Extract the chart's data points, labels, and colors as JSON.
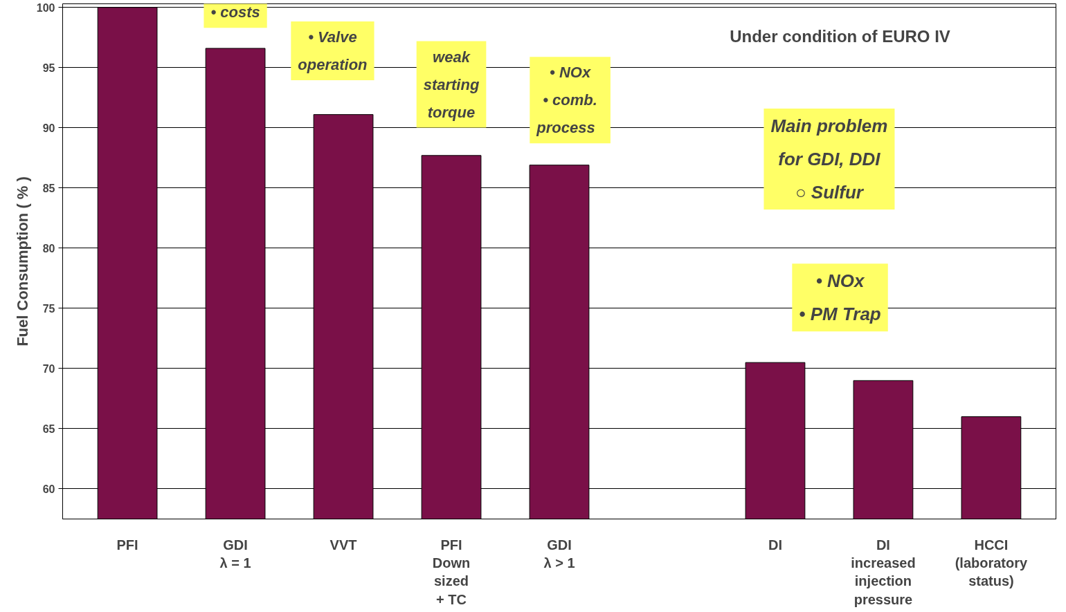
{
  "chart_data": {
    "type": "bar",
    "ylabel": "Fuel Consumption ( % )",
    "categories": [
      "PFI",
      "GDI\nλ = 1",
      "VVT",
      "PFI\nDown\nsized\n+ TC",
      "GDI\nλ > 1",
      null,
      "DI",
      "DI\nincreased\ninjection\npressure",
      "HCCI\n(laboratory\nstatus)"
    ],
    "values": [
      100,
      96.6,
      91.1,
      87.7,
      86.9,
      null,
      70.5,
      69.0,
      66.0
    ],
    "color": "#7a1048",
    "ylim": [
      57.5,
      100.3
    ],
    "yticks": [
      60,
      65,
      70,
      75,
      80,
      85,
      90,
      95,
      100
    ],
    "grid": "y",
    "annotations": [
      "Under condition of EURO IV",
      "• costs",
      "• Valve\noperation",
      "weak\nstarting\ntorque",
      "• NOx\n• comb.\n  process",
      "Main problem\nfor GDI, DDI\n○ Sulfur",
      "• NOx\n• PM Trap"
    ]
  }
}
